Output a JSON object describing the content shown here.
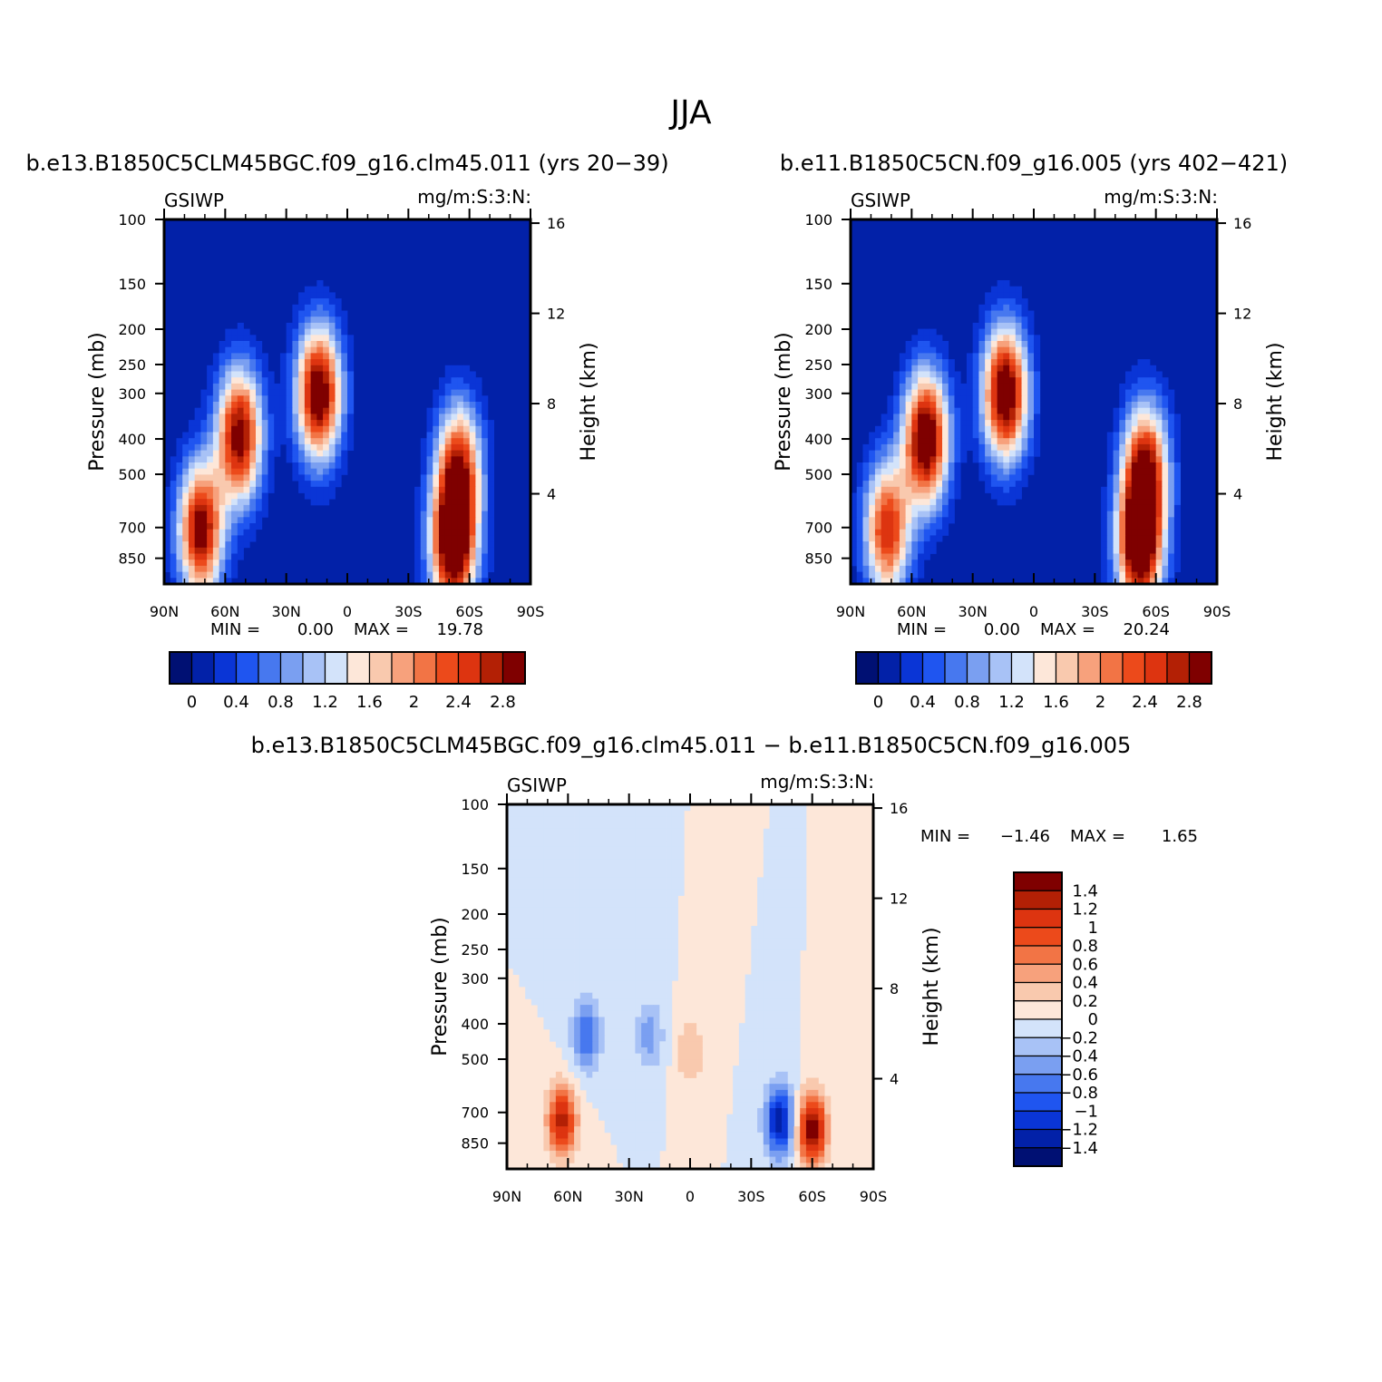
{
  "figure": {
    "title": "JJA"
  },
  "colors": {
    "abs_palette": [
      "#001073",
      "#0221a8",
      "#0a35d6",
      "#1f55f0",
      "#4778ef",
      "#7a9ff1",
      "#a8c2f6",
      "#d3e3fa",
      "#fde7d9",
      "#f9c9ae",
      "#f7a17c",
      "#f27445",
      "#ec4a1b",
      "#dd3410",
      "#b32005",
      "#7f0000"
    ],
    "diff_palette": [
      "#001073",
      "#0221a8",
      "#0a35d6",
      "#1f55f0",
      "#4778ef",
      "#7a9ff1",
      "#a8c2f6",
      "#d3e3fa",
      "#fde7d9",
      "#f9c9ae",
      "#f7a17c",
      "#f27445",
      "#ec4a1b",
      "#dd3410",
      "#b32005",
      "#7f0000"
    ]
  },
  "chart_data": [
    {
      "id": "panel-a",
      "type": "heatmap",
      "title": "b.e13.B1850C5CLM45BGC.f09_g16.clm45.011 (yrs 20−39)",
      "left_label": "GSIWP",
      "right_label": "mg/m:S:3:N:",
      "ylabel": "Pressure (mb)",
      "ylabel_right": "Height (km)",
      "x_ticks": [
        "90N",
        "60N",
        "30N",
        "0",
        "30S",
        "60S",
        "90S"
      ],
      "x_range": [
        90,
        -90
      ],
      "y_ticks": [
        100,
        150,
        200,
        250,
        300,
        400,
        500,
        700,
        850
      ],
      "y_range": [
        100,
        1000
      ],
      "y_scale": "log",
      "y_right_ticks": [
        16,
        12,
        8,
        4
      ],
      "min_label": "MIN =",
      "min_value": "0.00",
      "max_label": "MAX =",
      "max_value": "19.78",
      "colorbar_labels": [
        "0",
        "0.4",
        "0.8",
        "1.2",
        "1.6",
        "2",
        "2.4",
        "2.8"
      ],
      "colorbar_orientation": "horizontal",
      "features": [
        {
          "lat": 72,
          "p": 710,
          "amp": 3.0
        },
        {
          "lat": 53,
          "p": 390,
          "amp": 3.0
        },
        {
          "lat": 14,
          "p": 300,
          "amp": 3.2
        },
        {
          "lat": -52,
          "p": 780,
          "amp": 3.4
        },
        {
          "lat": -55,
          "p": 480,
          "amp": 2.4
        }
      ]
    },
    {
      "id": "panel-b",
      "type": "heatmap",
      "title": "b.e11.B1850C5CN.f09_g16.005 (yrs 402−421)",
      "left_label": "GSIWP",
      "right_label": "mg/m:S:3:N:",
      "ylabel": "Pressure (mb)",
      "ylabel_right": "Height (km)",
      "x_ticks": [
        "90N",
        "60N",
        "30N",
        "0",
        "30S",
        "60S",
        "90S"
      ],
      "x_range": [
        90,
        -90
      ],
      "y_ticks": [
        100,
        150,
        200,
        250,
        300,
        400,
        500,
        700,
        850
      ],
      "y_range": [
        100,
        1000
      ],
      "y_scale": "log",
      "y_right_ticks": [
        16,
        12,
        8,
        4
      ],
      "min_label": "MIN =",
      "min_value": "0.00",
      "max_label": "MAX =",
      "max_value": "20.24",
      "colorbar_labels": [
        "0",
        "0.4",
        "0.8",
        "1.2",
        "1.6",
        "2",
        "2.4",
        "2.8"
      ],
      "colorbar_orientation": "horizontal",
      "features": [
        {
          "lat": 72,
          "p": 710,
          "amp": 2.6
        },
        {
          "lat": 53,
          "p": 400,
          "amp": 3.3
        },
        {
          "lat": 14,
          "p": 300,
          "amp": 3.3
        },
        {
          "lat": -52,
          "p": 780,
          "amp": 3.4
        },
        {
          "lat": -55,
          "p": 480,
          "amp": 2.6
        }
      ]
    },
    {
      "id": "panel-c",
      "type": "heatmap",
      "title": "b.e13.B1850C5CLM45BGC.f09_g16.clm45.011 − b.e11.B1850C5CN.f09_g16.005",
      "left_label": "GSIWP",
      "right_label": "mg/m:S:3:N:",
      "ylabel": "Pressure (mb)",
      "ylabel_right": "Height (km)",
      "x_ticks": [
        "90N",
        "60N",
        "30N",
        "0",
        "30S",
        "60S",
        "90S"
      ],
      "x_range": [
        90,
        -90
      ],
      "y_ticks": [
        100,
        150,
        200,
        250,
        300,
        400,
        500,
        700,
        850
      ],
      "y_range": [
        100,
        1000
      ],
      "y_scale": "log",
      "y_right_ticks": [
        16,
        12,
        8,
        4
      ],
      "min_label": "MIN =",
      "min_value": "−1.46",
      "max_label": "MAX =",
      "max_value": "1.65",
      "colorbar_labels": [
        "1.4",
        "1.2",
        "1",
        "0.8",
        "0.6",
        "0.4",
        "0.2",
        "0",
        "−0.2",
        "−0.4",
        "−0.6",
        "−0.8",
        "−1",
        "−1.2",
        "−1.4"
      ],
      "colorbar_orientation": "vertical",
      "features": [
        {
          "lat": 63,
          "p": 740,
          "amp": 1.3
        },
        {
          "lat": 51,
          "p": 430,
          "amp": -0.8
        },
        {
          "lat": 20,
          "p": 430,
          "amp": -0.5
        },
        {
          "lat": -44,
          "p": 740,
          "amp": -1.4
        },
        {
          "lat": -60,
          "p": 780,
          "amp": 1.6
        },
        {
          "lat": 0,
          "p": 480,
          "amp": 0.4
        }
      ]
    }
  ]
}
